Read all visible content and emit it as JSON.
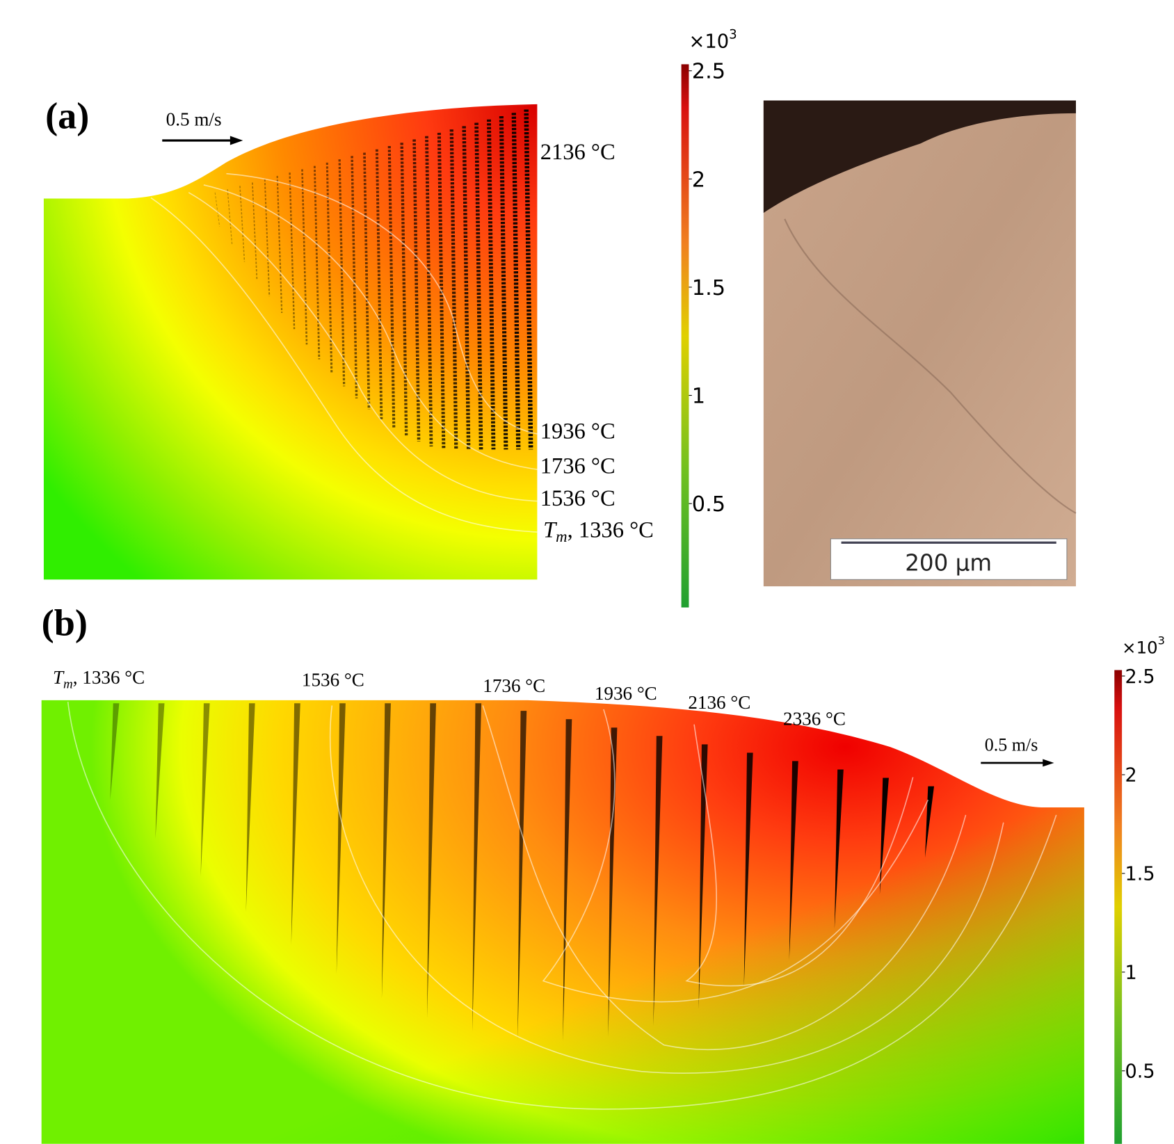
{
  "panels": [
    {
      "label": "(a)",
      "velocity": "0.5 m/s",
      "isotherms": [
        "2136 °C",
        "1936 °C",
        "1736 °C",
        "1536 °C",
        {
          "symbol": "T",
          "subscript": "m",
          "text": ", 1336 °C"
        }
      ],
      "colorbar": {
        "multiplier": "×10",
        "exponent": "3",
        "range": [
          0.02,
          2.53
        ],
        "ticks": [
          0.5,
          1,
          1.5,
          2,
          2.5
        ]
      }
    },
    {
      "label": "(b)",
      "velocity": "0.5 m/s",
      "isotherms": [
        {
          "symbol": "T",
          "subscript": "m",
          "text": ", 1336 °C"
        },
        "1536 °C",
        "1736 °C",
        "1936 °C",
        "2136 °C",
        "2336 °C"
      ],
      "colorbar": {
        "multiplier": "×10",
        "exponent": "3",
        "range": [
          0.13,
          2.53
        ],
        "ticks": [
          0.5,
          1,
          1.5,
          2,
          2.5
        ]
      }
    }
  ],
  "micrograph": {
    "scale_bar": "200 µm"
  }
}
